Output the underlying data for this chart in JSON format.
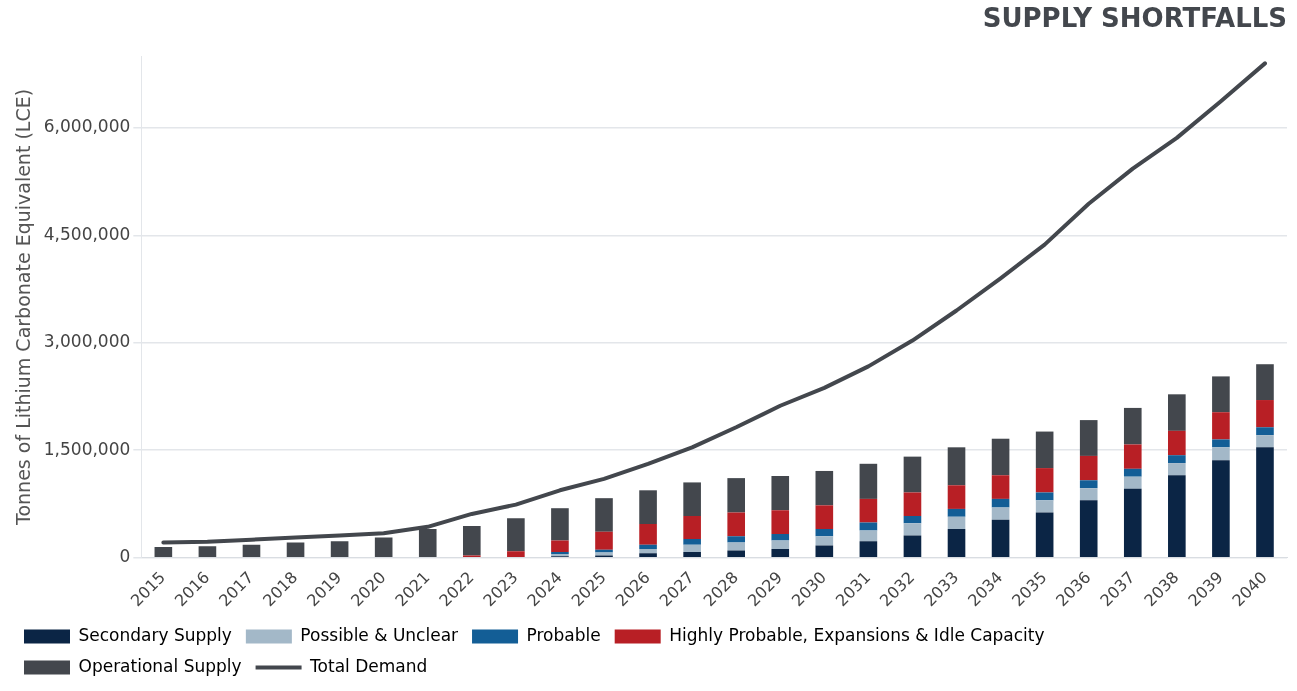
{
  "chart_data": {
    "type": "bar",
    "title": "SUPPLY SHORTFALLS",
    "ylabel": "Tonnes of Lithium Carbonate Equivalent (LCE)",
    "categories": [
      "2015",
      "2016",
      "2017",
      "2018",
      "2019",
      "2020",
      "2021",
      "2022",
      "2023",
      "2024",
      "2025",
      "2026",
      "2027",
      "2028",
      "2029",
      "2030",
      "2031",
      "2032",
      "2033",
      "2034",
      "2035",
      "2036",
      "2037",
      "2038",
      "2039",
      "2040"
    ],
    "stacked": true,
    "series": [
      {
        "name": "Secondary Supply",
        "color": "#0b2545",
        "values": [
          0,
          0,
          0,
          0,
          0,
          0,
          0,
          0,
          0,
          20000,
          30000,
          60000,
          80000,
          100000,
          120000,
          170000,
          230000,
          310000,
          400000,
          530000,
          630000,
          800000,
          960000,
          1150000,
          1360000,
          1540000
        ]
      },
      {
        "name": "Possible & Unclear",
        "color": "#a3b8c8",
        "values": [
          0,
          0,
          0,
          0,
          0,
          0,
          0,
          0,
          0,
          30000,
          40000,
          60000,
          100000,
          110000,
          120000,
          130000,
          150000,
          170000,
          170000,
          170000,
          170000,
          170000,
          170000,
          170000,
          180000,
          170000
        ]
      },
      {
        "name": "Probable",
        "color": "#135e96",
        "values": [
          0,
          0,
          0,
          0,
          0,
          0,
          0,
          0,
          0,
          30000,
          40000,
          60000,
          80000,
          90000,
          90000,
          100000,
          110000,
          100000,
          110000,
          120000,
          110000,
          110000,
          110000,
          110000,
          110000,
          110000
        ]
      },
      {
        "name": "Highly Probable, Expansions & Idle Capacity",
        "color": "#b81f25",
        "values": [
          0,
          0,
          0,
          0,
          0,
          0,
          0,
          30000,
          90000,
          160000,
          250000,
          290000,
          320000,
          330000,
          330000,
          330000,
          330000,
          330000,
          330000,
          330000,
          340000,
          340000,
          340000,
          340000,
          380000,
          380000
        ]
      },
      {
        "name": "Operational Supply",
        "color": "#43474d",
        "values": [
          150000,
          160000,
          180000,
          210000,
          230000,
          280000,
          400000,
          410000,
          460000,
          450000,
          470000,
          470000,
          470000,
          480000,
          480000,
          480000,
          490000,
          500000,
          530000,
          510000,
          510000,
          500000,
          510000,
          510000,
          500000,
          500000
        ]
      },
      {
        "name": "Total Demand",
        "type": "line",
        "color": "#43474d",
        "values": [
          210000,
          220000,
          250000,
          280000,
          310000,
          340000,
          430000,
          610000,
          740000,
          940000,
          1100000,
          1310000,
          1540000,
          1820000,
          2120000,
          2370000,
          2670000,
          3030000,
          3450000,
          3900000,
          4370000,
          4940000,
          5430000,
          5860000,
          6370000,
          6900000
        ]
      }
    ],
    "yticks": [
      0,
      {
        "value": 1500000,
        "label": "1,500,000"
      },
      {
        "value": 3000000,
        "label": "3,000,000"
      },
      {
        "value": 4500000,
        "label": "4,500,000"
      },
      {
        "value": 6000000,
        "label": "6,000,000"
      }
    ],
    "ylim": [
      0,
      7000000
    ],
    "grid": "y",
    "legend": "bottom",
    "marker": "none",
    "line_style": "solid"
  }
}
